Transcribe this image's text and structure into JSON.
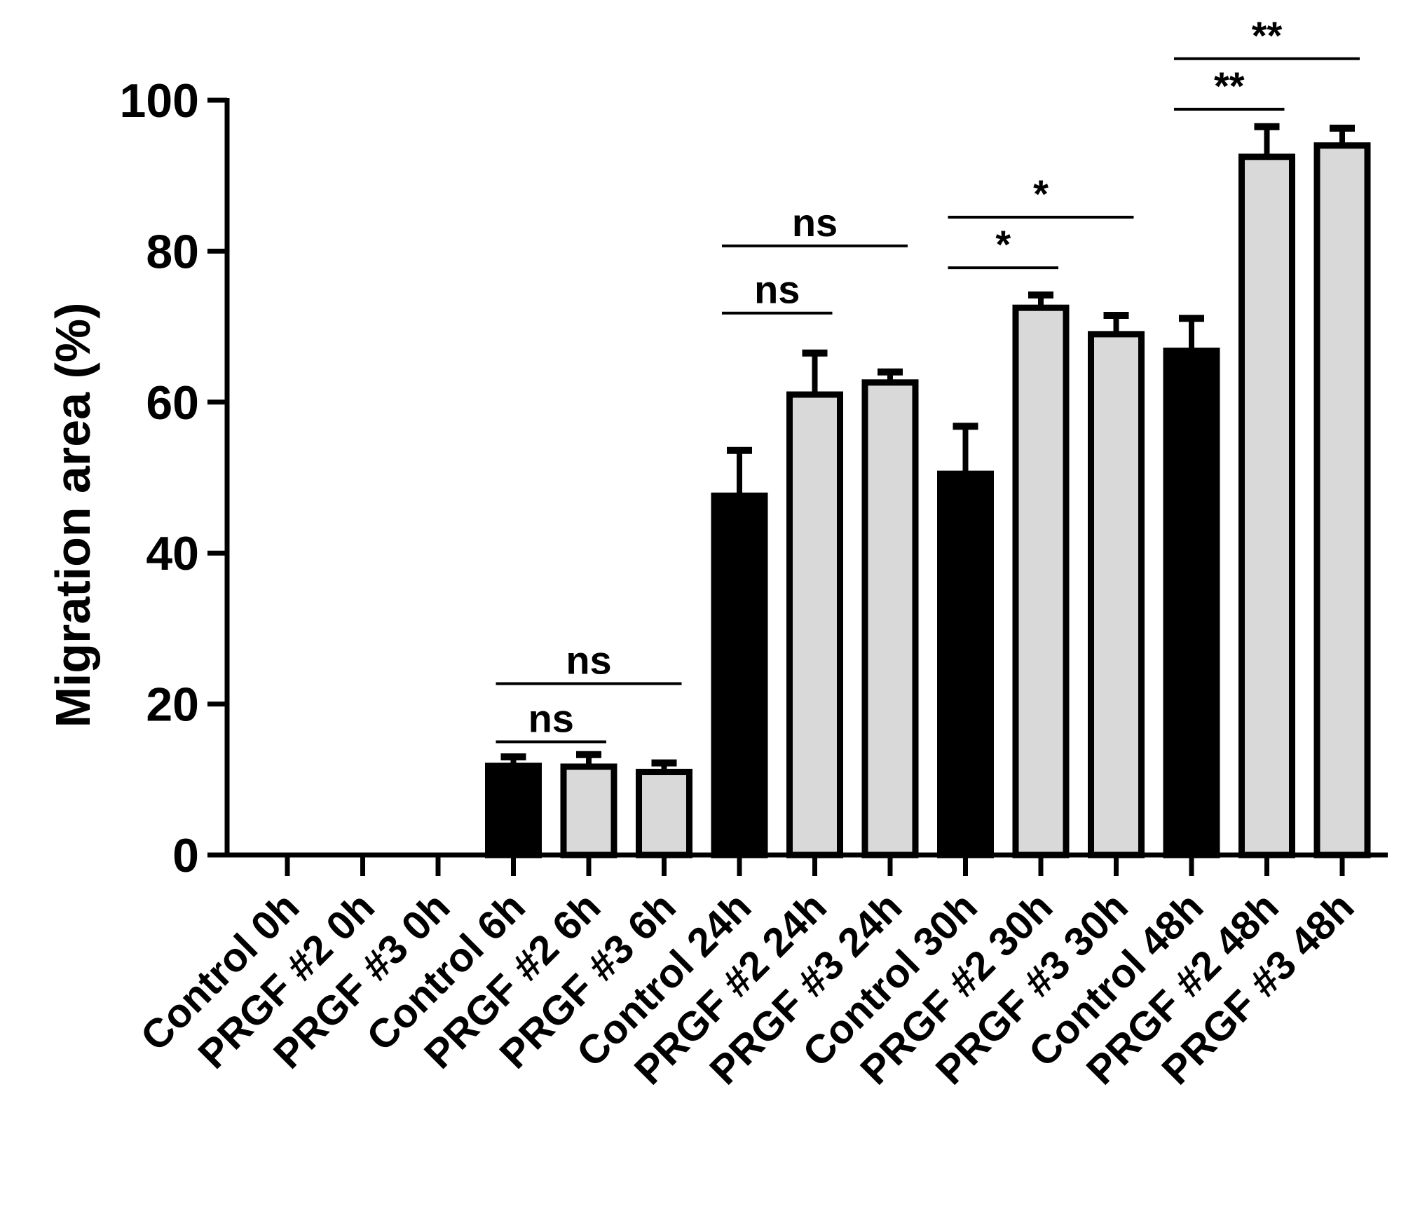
{
  "chart_data": {
    "type": "bar",
    "title": "",
    "xlabel": "",
    "ylabel": "Migration area (%)",
    "ylim": [
      0,
      100
    ],
    "yticks": [
      0,
      20,
      40,
      60,
      80,
      100
    ],
    "grid": false,
    "categories": [
      "Control 0h",
      "PRGF #2 0h",
      "PRGF #3 0h",
      "Control 6h",
      "PRGF #2 6h",
      "PRGF #3 6h",
      "Control 24h",
      "PRGF #2 24h",
      "PRGF #3 24h",
      "Control 30h",
      "PRGF #2 30h",
      "PRGF #3 30h",
      "Control 48h",
      "PRGF #2 48h",
      "PRGF #3 48h"
    ],
    "values": [
      0,
      0,
      0,
      11.8,
      11.7,
      11.0,
      47.6,
      61.0,
      62.6,
      50.5,
      72.5,
      69.0,
      66.8,
      92.5,
      94.0
    ],
    "errors": [
      0,
      0,
      0,
      1.2,
      1.6,
      1.2,
      6.0,
      5.5,
      1.4,
      6.3,
      1.7,
      2.5,
      4.3,
      4.0,
      2.3
    ],
    "fills": [
      "#000000",
      "#d9d9d9",
      "#d9d9d9",
      "#000000",
      "#d9d9d9",
      "#d9d9d9",
      "#000000",
      "#d9d9d9",
      "#d9d9d9",
      "#000000",
      "#d9d9d9",
      "#d9d9d9",
      "#000000",
      "#d9d9d9",
      "#d9d9d9"
    ],
    "significance": [
      {
        "from": 3,
        "to": 4,
        "value": 15.0,
        "label": "ns"
      },
      {
        "from": 3,
        "to": 5,
        "value": 22.7,
        "label": "ns"
      },
      {
        "from": 6,
        "to": 7,
        "value": 71.8,
        "label": "ns"
      },
      {
        "from": 6,
        "to": 8,
        "value": 80.7,
        "label": "ns"
      },
      {
        "from": 9,
        "to": 10,
        "value": 77.8,
        "label": "*"
      },
      {
        "from": 9,
        "to": 11,
        "value": 84.5,
        "label": "*"
      },
      {
        "from": 12,
        "to": 13,
        "value": 98.8,
        "label": "**"
      },
      {
        "from": 12,
        "to": 14,
        "value": 105.5,
        "label": "**"
      }
    ]
  }
}
